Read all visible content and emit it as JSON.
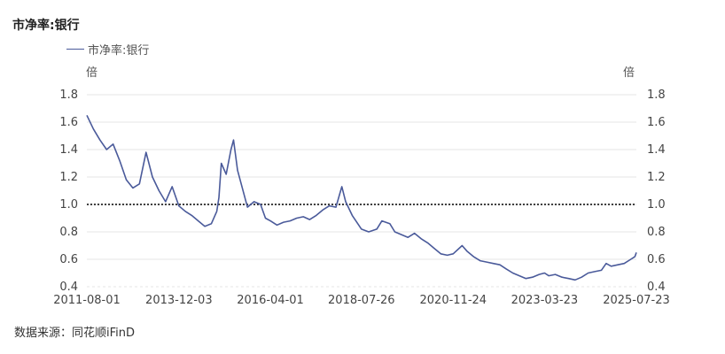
{
  "title": "市净率:银行",
  "legend": {
    "series_label": "市净率:银行"
  },
  "units": {
    "left": "倍",
    "right": "倍"
  },
  "source": "数据来源：同花顺iFinD",
  "colors": {
    "series": "#4a5a9a",
    "reference": "#000000",
    "grid": "#e6e6e6"
  },
  "chart_data": {
    "type": "line",
    "title": "市净率:银行",
    "xlabel": "",
    "ylabel": "倍",
    "ylim": [
      0.4,
      1.8
    ],
    "yticks": [
      0.4,
      0.6,
      0.8,
      1.0,
      1.2,
      1.4,
      1.6,
      1.8
    ],
    "xticks": [
      "2011-08-01",
      "2013-12-03",
      "2016-04-01",
      "2018-07-26",
      "2020-11-24",
      "2023-03-23",
      "2025-07-23"
    ],
    "xrange": [
      "2011-08-01",
      "2025-07-23"
    ],
    "reference_line": {
      "y": 1.0,
      "style": "dotted"
    },
    "series": [
      {
        "name": "市净率:银行",
        "x": [
          "2011-08-01",
          "2011-10-01",
          "2011-12-01",
          "2012-02-01",
          "2012-04-01",
          "2012-06-01",
          "2012-08-01",
          "2012-10-01",
          "2012-12-01",
          "2013-02-01",
          "2013-04-01",
          "2013-06-01",
          "2013-08-01",
          "2013-10-01",
          "2013-12-03",
          "2014-02-01",
          "2014-04-01",
          "2014-06-01",
          "2014-08-01",
          "2014-10-01",
          "2014-11-20",
          "2014-12-10",
          "2015-01-01",
          "2015-02-15",
          "2015-04-01",
          "2015-04-25",
          "2015-06-01",
          "2015-07-15",
          "2015-09-01",
          "2015-11-01",
          "2016-01-01",
          "2016-02-15",
          "2016-04-01",
          "2016-06-01",
          "2016-08-01",
          "2016-10-01",
          "2016-12-01",
          "2017-02-01",
          "2017-04-01",
          "2017-06-01",
          "2017-08-01",
          "2017-10-01",
          "2017-12-01",
          "2018-01-25",
          "2018-03-01",
          "2018-05-01",
          "2018-07-26",
          "2018-10-01",
          "2018-12-15",
          "2019-02-01",
          "2019-04-15",
          "2019-06-01",
          "2019-08-01",
          "2019-10-01",
          "2019-12-01",
          "2020-02-01",
          "2020-04-01",
          "2020-06-01",
          "2020-08-01",
          "2020-10-01",
          "2020-11-24",
          "2021-02-15",
          "2021-04-01",
          "2021-06-01",
          "2021-08-01",
          "2021-10-01",
          "2021-12-01",
          "2022-02-01",
          "2022-04-01",
          "2022-06-01",
          "2022-08-01",
          "2022-10-01",
          "2022-12-01",
          "2023-02-01",
          "2023-03-23",
          "2023-05-01",
          "2023-07-01",
          "2023-09-01",
          "2023-11-01",
          "2024-01-01",
          "2024-03-01",
          "2024-05-01",
          "2024-07-01",
          "2024-09-01",
          "2024-10-15",
          "2024-12-01",
          "2025-02-01",
          "2025-04-01",
          "2025-06-01",
          "2025-07-10",
          "2025-07-23"
        ],
        "y": [
          1.65,
          1.55,
          1.47,
          1.4,
          1.44,
          1.32,
          1.18,
          1.12,
          1.15,
          1.38,
          1.2,
          1.1,
          1.02,
          1.13,
          0.99,
          0.95,
          0.92,
          0.88,
          0.84,
          0.86,
          0.95,
          1.05,
          1.3,
          1.22,
          1.4,
          1.47,
          1.25,
          1.12,
          0.98,
          1.02,
          1.0,
          0.9,
          0.88,
          0.85,
          0.87,
          0.88,
          0.9,
          0.91,
          0.89,
          0.92,
          0.96,
          0.99,
          0.98,
          1.13,
          1.02,
          0.92,
          0.82,
          0.8,
          0.82,
          0.88,
          0.86,
          0.8,
          0.78,
          0.76,
          0.79,
          0.75,
          0.72,
          0.68,
          0.64,
          0.63,
          0.64,
          0.7,
          0.66,
          0.62,
          0.59,
          0.58,
          0.57,
          0.56,
          0.53,
          0.5,
          0.48,
          0.46,
          0.47,
          0.49,
          0.5,
          0.48,
          0.49,
          0.47,
          0.46,
          0.45,
          0.47,
          0.5,
          0.51,
          0.52,
          0.57,
          0.55,
          0.56,
          0.57,
          0.6,
          0.62,
          0.65
        ]
      }
    ]
  }
}
